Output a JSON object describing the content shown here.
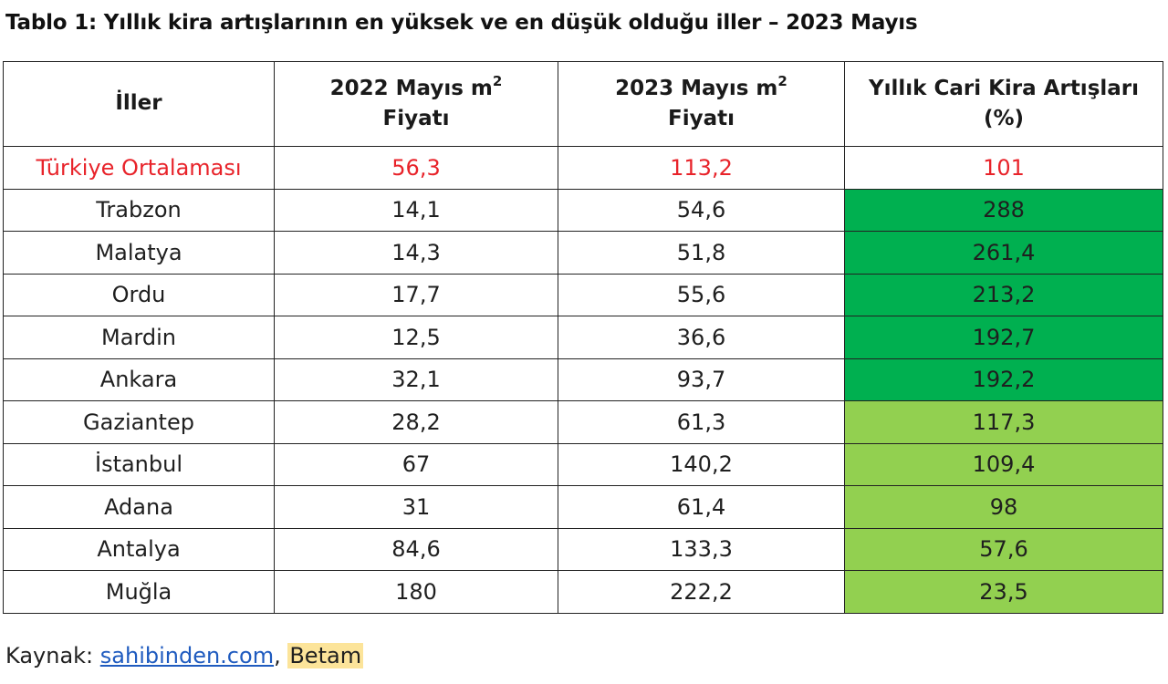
{
  "title": "Tablo 1: Yıllık kira artışlarının en yüksek ve en düşük olduğu iller – 2023 Mayıs",
  "table": {
    "headers": {
      "col1": "İller",
      "col2_line1": "2022 Mayıs m",
      "col2_sup": "2",
      "col2_line2": "Fiyatı",
      "col3_line1": "2023 Mayıs m",
      "col3_sup": "2",
      "col3_line2": "Fiyatı",
      "col4_line1": "Yıllık Cari Kira Artışları",
      "col4_line2": "(%)"
    },
    "rows": [
      {
        "city": "Türkiye Ortalaması",
        "p2022": "56,3",
        "p2023": "113,2",
        "increase": "101"
      },
      {
        "city": "Trabzon",
        "p2022": "14,1",
        "p2023": "54,6",
        "increase": "288"
      },
      {
        "city": "Malatya",
        "p2022": "14,3",
        "p2023": "51,8",
        "increase": "261,4"
      },
      {
        "city": "Ordu",
        "p2022": "17,7",
        "p2023": "55,6",
        "increase": "213,2"
      },
      {
        "city": "Mardin",
        "p2022": "12,5",
        "p2023": "36,6",
        "increase": "192,7"
      },
      {
        "city": "Ankara",
        "p2022": "32,1",
        "p2023": "93,7",
        "increase": "192,2"
      },
      {
        "city": "Gaziantep",
        "p2022": "28,2",
        "p2023": "61,3",
        "increase": "117,3"
      },
      {
        "city": "İstanbul",
        "p2022": "67",
        "p2023": "140,2",
        "increase": "109,4"
      },
      {
        "city": "Adana",
        "p2022": "31",
        "p2023": "61,4",
        "increase": "98"
      },
      {
        "city": "Antalya",
        "p2022": "84,6",
        "p2023": "133,3",
        "increase": "57,6"
      },
      {
        "city": "Muğla",
        "p2022": "180",
        "p2023": "222,2",
        "increase": "23,5"
      }
    ]
  },
  "colors": {
    "average_text": "#e8232a",
    "highest_fill": "#00b050",
    "lower_fill": "#92d050",
    "source_highlight": "#fce49a",
    "link": "#1f5bbf"
  },
  "source": {
    "prefix": "Kaynak: ",
    "link_text": "sahibinden.com",
    "separator": ", ",
    "org": "Betam"
  }
}
